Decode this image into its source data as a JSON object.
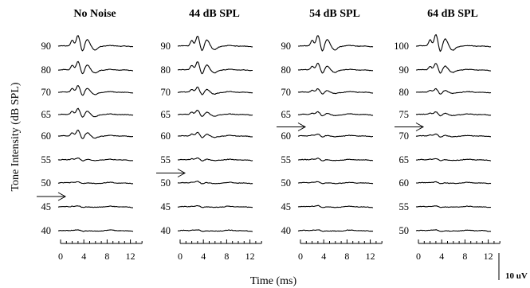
{
  "chart_data": {
    "type": "line",
    "ylabel": "Tone Intensity (dB SPL)",
    "xlabel": "Time (ms)",
    "x_ticks": [
      0,
      4,
      8,
      12
    ],
    "xlim": [
      0,
      14
    ],
    "scale_bar_label": "10 uV",
    "panels": [
      {
        "title": "No Noise",
        "levels": [
          "90",
          "80",
          "70",
          "65",
          "60",
          "55",
          "50",
          "45",
          "40"
        ],
        "threshold_between": [
          "50",
          "45"
        ],
        "wave_peaks_uv": [
          6.5,
          5.0,
          4.0,
          3.5,
          3.5,
          1.0,
          0.5,
          0.4,
          0.3
        ]
      },
      {
        "title": "44 dB SPL",
        "levels": [
          "90",
          "80",
          "70",
          "65",
          "60",
          "55",
          "50",
          "45",
          "40"
        ],
        "threshold_between": [
          "55",
          "50"
        ],
        "wave_peaks_uv": [
          6.0,
          5.0,
          3.0,
          2.5,
          2.0,
          1.0,
          0.8,
          0.5,
          0.3
        ]
      },
      {
        "title": "54 dB SPL",
        "levels": [
          "90",
          "80",
          "70",
          "65",
          "60",
          "55",
          "50",
          "45",
          "40"
        ],
        "threshold_between": [
          "65",
          "60"
        ],
        "wave_peaks_uv": [
          6.5,
          4.0,
          2.0,
          1.5,
          1.0,
          0.8,
          0.6,
          0.5,
          0.3
        ]
      },
      {
        "title": "64 dB SPL",
        "levels": [
          "100",
          "90",
          "80",
          "75",
          "70",
          "65",
          "60",
          "55",
          "50"
        ],
        "threshold_between": [
          "75",
          "70"
        ],
        "wave_peaks_uv": [
          7.0,
          4.0,
          2.0,
          1.5,
          1.0,
          0.6,
          0.5,
          0.4,
          0.3
        ]
      }
    ]
  }
}
